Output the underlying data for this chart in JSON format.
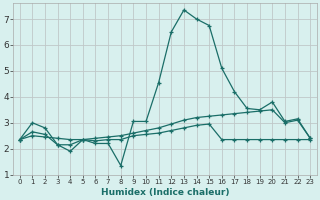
{
  "xlabel": "Humidex (Indice chaleur)",
  "xlim": [
    -0.5,
    23.5
  ],
  "ylim": [
    1,
    7.6
  ],
  "bg_color": "#d8f0ee",
  "grid_color": "#c0c8c8",
  "line_color": "#1a6e68",
  "x_ticks": [
    0,
    1,
    2,
    3,
    4,
    5,
    6,
    7,
    8,
    9,
    10,
    11,
    12,
    13,
    14,
    15,
    16,
    17,
    18,
    19,
    20,
    21,
    22,
    23
  ],
  "y_ticks": [
    1,
    2,
    3,
    4,
    5,
    6,
    7
  ],
  "line1_x": [
    0,
    1,
    2,
    3,
    4,
    5,
    6,
    7,
    8,
    9,
    10,
    11,
    12,
    13,
    14,
    15,
    16,
    17,
    18,
    19,
    20,
    21,
    22,
    23
  ],
  "line1_y": [
    2.35,
    3.0,
    2.8,
    2.15,
    1.9,
    2.35,
    2.2,
    2.2,
    1.35,
    3.05,
    3.05,
    4.55,
    6.5,
    7.35,
    7.0,
    6.75,
    5.1,
    4.2,
    3.55,
    3.5,
    3.8,
    3.05,
    3.15,
    2.4
  ],
  "line2_x": [
    0,
    1,
    2,
    3,
    4,
    5,
    6,
    7,
    8,
    9,
    10,
    11,
    12,
    13,
    14,
    15,
    16,
    17,
    18,
    19,
    20,
    21,
    22,
    23
  ],
  "line2_y": [
    2.35,
    2.65,
    2.55,
    2.15,
    2.15,
    2.35,
    2.3,
    2.35,
    2.35,
    2.5,
    2.55,
    2.6,
    2.7,
    2.8,
    2.9,
    2.95,
    2.35,
    2.35,
    2.35,
    2.35,
    2.35,
    2.35,
    2.35,
    2.35
  ],
  "line3_x": [
    0,
    1,
    2,
    3,
    4,
    5,
    6,
    7,
    8,
    9,
    10,
    11,
    12,
    13,
    14,
    15,
    16,
    17,
    18,
    19,
    20,
    21,
    22,
    23
  ],
  "line3_y": [
    2.35,
    2.5,
    2.45,
    2.4,
    2.35,
    2.35,
    2.4,
    2.45,
    2.5,
    2.6,
    2.7,
    2.8,
    2.95,
    3.1,
    3.2,
    3.25,
    3.3,
    3.35,
    3.4,
    3.45,
    3.5,
    3.0,
    3.1,
    2.4
  ]
}
